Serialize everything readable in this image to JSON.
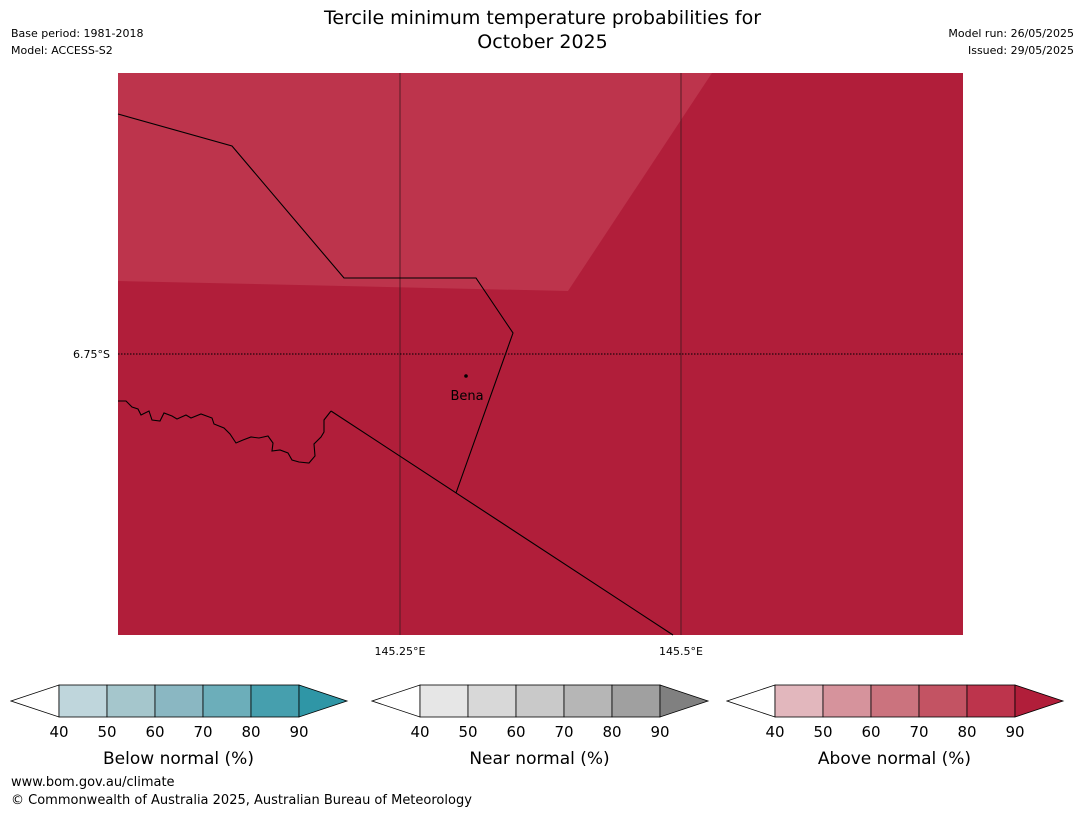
{
  "header": {
    "base_period": "Base period: 1981-2018",
    "model": "Model: ACCESS-S2",
    "title_line1": "Tercile minimum temperature probabilities for",
    "title_line2": "October 2025",
    "model_run": "Model run: 26/05/2025",
    "issued": "Issued: 29/05/2025"
  },
  "map": {
    "lat_label": "6.75°S",
    "lon_labels": [
      "145.25°E",
      "145.5°E"
    ],
    "place_name": "Bena",
    "colors": {
      "high": "#b11e3a",
      "mid": "#bd344c"
    }
  },
  "colorbars": [
    {
      "title": "Below normal (%)",
      "ticks": [
        "40",
        "50",
        "60",
        "70",
        "80",
        "90"
      ],
      "colors": [
        "#ffffff",
        "#bfd6dc",
        "#a5c6cc",
        "#8ab7c2",
        "#6caeba",
        "#469fae",
        "#2f96a6"
      ]
    },
    {
      "title": "Near normal (%)",
      "ticks": [
        "40",
        "50",
        "60",
        "70",
        "80",
        "90"
      ],
      "colors": [
        "#ffffff",
        "#e6e6e6",
        "#d8d8d8",
        "#c9c9c9",
        "#b6b6b6",
        "#a0a0a0",
        "#808080"
      ]
    },
    {
      "title": "Above normal (%)",
      "ticks": [
        "40",
        "50",
        "60",
        "70",
        "80",
        "90"
      ],
      "colors": [
        "#ffffff",
        "#e2b7bd",
        "#d6939c",
        "#cb737e",
        "#c35363",
        "#bd344c",
        "#b11e3a"
      ]
    }
  ],
  "footer": {
    "url": "www.bom.gov.au/climate",
    "copyright": "© Commonwealth of Australia 2025, Australian Bureau of Meteorology"
  }
}
